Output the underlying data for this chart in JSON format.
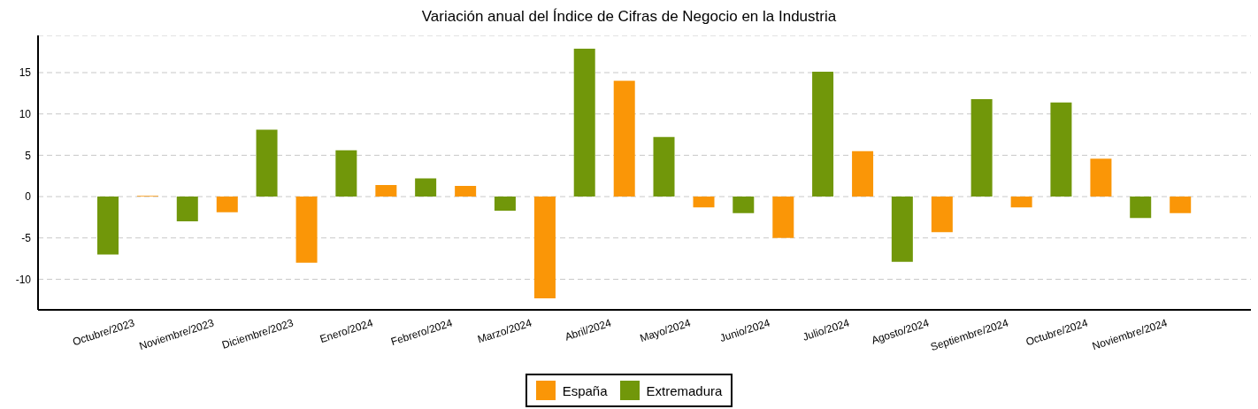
{
  "chart_data": {
    "type": "bar",
    "title": "Variación anual del Índice de Cifras de Negocio en la Industria",
    "categories": [
      "Octubre/2023",
      "Noviembre/2023",
      "Diciembre/2023",
      "Enero/2024",
      "Febrero/2024",
      "Marzo/2024",
      "Abril/2024",
      "Mayo/2024",
      "Junio/2024",
      "Julio/2024",
      "Agosto/2024",
      "Septiembre/2024",
      "Octubre/2024",
      "Noviembre/2024"
    ],
    "series": [
      {
        "name": "Extremadura",
        "color": "#71970a",
        "values": [
          -7.0,
          -3.0,
          8.1,
          5.6,
          2.2,
          -1.7,
          17.9,
          7.2,
          -2.0,
          15.1,
          -7.9,
          11.8,
          11.4,
          -2.6
        ]
      },
      {
        "name": "España",
        "color": "#fa9607",
        "values": [
          0.1,
          -1.9,
          -8.0,
          1.4,
          1.3,
          -12.3,
          14.0,
          -1.3,
          -5.0,
          5.5,
          -4.3,
          -1.3,
          4.6,
          -2.0
        ]
      }
    ],
    "ylim": [
      -13.7,
      19.5
    ],
    "yticks": [
      -10,
      -5,
      0,
      5,
      10,
      15
    ],
    "grid": "y",
    "legend": "bottom"
  }
}
